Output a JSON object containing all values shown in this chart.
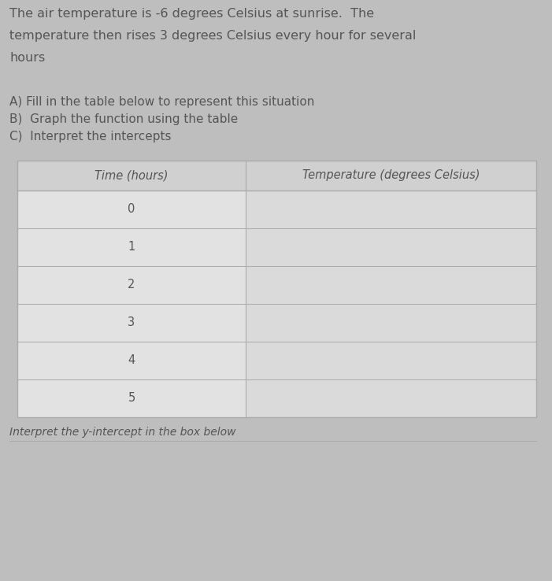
{
  "title_lines": [
    "The air temperature is -6 degrees Celsius at sunrise.  The",
    "temperature then rises 3 degrees Celsius every hour for several",
    "hours"
  ],
  "instructions": [
    "A) Fill in the table below to represent this situation",
    "B)  Graph the function using the table",
    "C)  Interpret the intercepts"
  ],
  "col_headers": [
    "Time (hours)",
    "Temperature (degrees Celsius)"
  ],
  "time_values": [
    "0",
    "1",
    "2",
    "3",
    "4",
    "5"
  ],
  "footer_text": "Interpret the y-intercept in the box below",
  "bg_color": "#bebebe",
  "table_left_color": "#e2e2e2",
  "table_right_color": "#dadada",
  "header_bg_color": "#d0d0d0",
  "text_color": "#555555",
  "border_color": "#aaaaaa",
  "title_fontsize": 11.5,
  "instruction_fontsize": 11.0,
  "table_fontsize": 10.5,
  "footer_fontsize": 10.0,
  "fig_width": 7.01,
  "fig_height": 7.38,
  "dpi": 100
}
